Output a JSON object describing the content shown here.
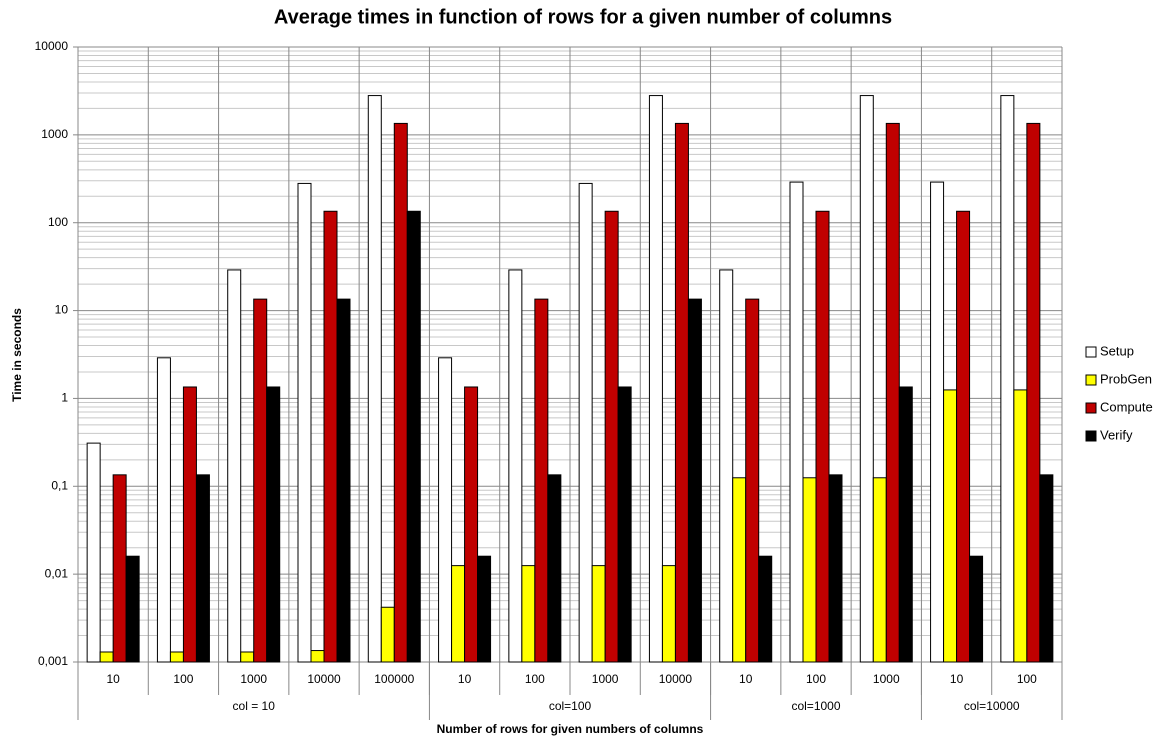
{
  "chart_data": {
    "type": "bar",
    "title": "Average times in function of rows for a given number of columns",
    "x_label": "Number of rows for given numbers of columns",
    "y_label": "Time in seconds",
    "log_scale": true,
    "grid": true,
    "minor_grid": true,
    "legend": "right",
    "groups": [
      {
        "label": "col = 10",
        "categories": [
          "10",
          "100",
          "1000",
          "10000",
          "100000"
        ]
      },
      {
        "label": "col=100",
        "categories": [
          "10",
          "100",
          "1000",
          "10000"
        ]
      },
      {
        "label": "col=1000",
        "categories": [
          "10",
          "100",
          "1000"
        ]
      },
      {
        "label": "col=10000",
        "categories": [
          "10",
          "100"
        ]
      }
    ],
    "ylim": [
      0.001,
      10000
    ],
    "yticks": [
      {
        "value": 0.001,
        "label": "0,001"
      },
      {
        "value": 0.01,
        "label": "0,01"
      },
      {
        "value": 0.1,
        "label": "0,1"
      },
      1,
      10,
      100,
      1000,
      10000
    ],
    "series": [
      {
        "name": "Setup",
        "color": "#ffffff",
        "values": [
          0.31,
          2.9,
          29,
          280,
          2800,
          2.9,
          29,
          280,
          2800,
          29,
          290,
          2800,
          290,
          2800
        ]
      },
      {
        "name": "ProbGen",
        "color": "#ffff00",
        "values": [
          0.0013,
          0.0013,
          0.0013,
          0.00135,
          0.0042,
          0.0125,
          0.0125,
          0.0125,
          0.0125,
          0.125,
          0.125,
          0.125,
          1.25,
          1.25
        ]
      },
      {
        "name": "Compute",
        "color": "#c00000",
        "values": [
          0.135,
          1.35,
          13.5,
          135,
          1350,
          1.35,
          13.5,
          135,
          1350,
          13.5,
          135,
          1350,
          135,
          1350
        ]
      },
      {
        "name": "Verify",
        "color": "#000000",
        "values": [
          0.016,
          0.135,
          1.35,
          13.5,
          135,
          0.016,
          0.135,
          1.35,
          13.5,
          0.016,
          0.135,
          1.35,
          0.016,
          0.135
        ]
      }
    ]
  }
}
